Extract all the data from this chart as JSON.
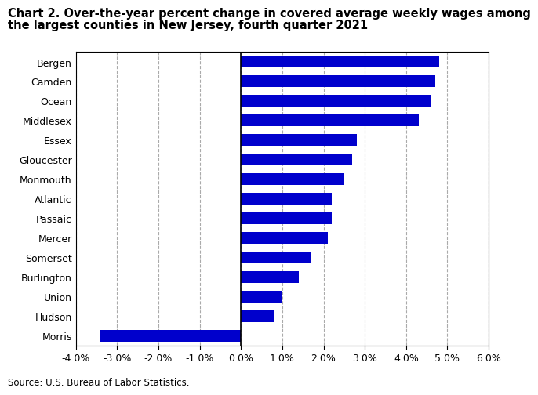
{
  "title_line1": "Chart 2. Over-the-year percent change in covered average weekly wages among",
  "title_line2": "the largest counties in New Jersey, fourth quarter 2021",
  "counties": [
    "Bergen",
    "Camden",
    "Ocean",
    "Middlesex",
    "Essex",
    "Gloucester",
    "Monmouth",
    "Atlantic",
    "Passaic",
    "Mercer",
    "Somerset",
    "Burlington",
    "Union",
    "Hudson",
    "Morris"
  ],
  "values": [
    4.8,
    4.7,
    4.6,
    4.3,
    2.8,
    2.7,
    2.5,
    2.2,
    2.2,
    2.1,
    1.7,
    1.4,
    1.0,
    0.8,
    -3.4
  ],
  "bar_color": "#0000cc",
  "xlim": [
    -4.0,
    6.0
  ],
  "xticks": [
    -4.0,
    -3.0,
    -2.0,
    -1.0,
    0.0,
    1.0,
    2.0,
    3.0,
    4.0,
    5.0,
    6.0
  ],
  "source": "Source: U.S. Bureau of Labor Statistics.",
  "background_color": "#ffffff",
  "grid_color": "#aaaaaa",
  "title_fontsize": 10.5,
  "tick_fontsize": 9,
  "source_fontsize": 8.5,
  "bar_height": 0.6
}
